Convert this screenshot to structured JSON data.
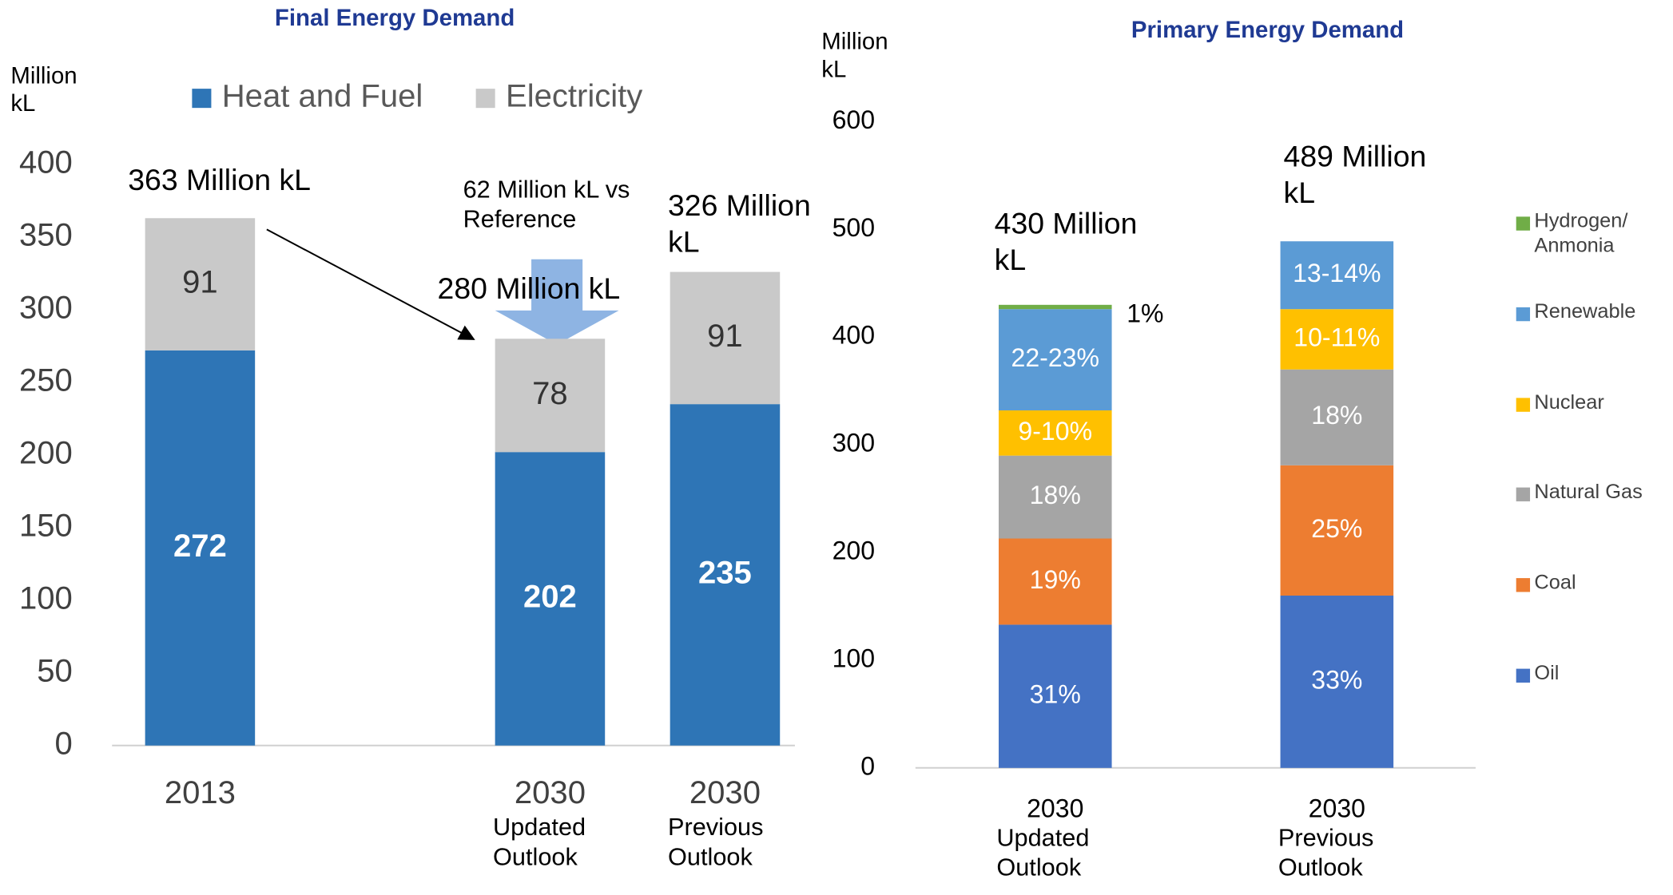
{
  "chart_data": [
    {
      "type": "bar",
      "stacked": true,
      "title": "Final Energy Demand",
      "y_label": "Million kL",
      "categories": [
        "2013",
        "2030",
        "2030"
      ],
      "category_notes": [
        null,
        "Updated Outlook",
        "Previous Outlook"
      ],
      "series": [
        {
          "name": "Heat and Fuel",
          "color": "#2e75b6",
          "values": [
            272,
            202,
            235
          ]
        },
        {
          "name": "Electricity",
          "color": "#c9c9c9",
          "values": [
            91,
            78,
            91
          ]
        }
      ],
      "total_labels": [
        "363 Million kL",
        "280 Million kL",
        "326 Million kL"
      ],
      "annotation": "62 Million kL vs Reference",
      "ylim": [
        0,
        400
      ],
      "yticks": [
        0,
        50,
        100,
        150,
        200,
        250,
        300,
        350,
        400
      ],
      "legend": "top"
    },
    {
      "type": "bar",
      "stacked": true,
      "title": "Primary Energy Demand",
      "y_label": "Million kL",
      "categories": [
        "2030",
        "2030"
      ],
      "category_notes": [
        "Updated Outlook",
        "Previous Outlook"
      ],
      "series": [
        {
          "name": "Oil",
          "color": "#4472c4",
          "values": [
            133,
            160
          ],
          "segment_labels": [
            "31%",
            "33%"
          ]
        },
        {
          "name": "Coal",
          "color": "#ed7d31",
          "values": [
            80,
            121
          ],
          "segment_labels": [
            "19%",
            "25%"
          ]
        },
        {
          "name": "Natural Gas",
          "color": "#a5a5a5",
          "values": [
            77,
            89
          ],
          "segment_labels": [
            "18%",
            "18%"
          ]
        },
        {
          "name": "Nuclear",
          "color": "#ffc000",
          "values": [
            42,
            56
          ],
          "segment_labels": [
            "9-10%",
            "10-11%"
          ]
        },
        {
          "name": "Renewable",
          "color": "#5b9bd5",
          "values": [
            94,
            63
          ],
          "segment_labels": [
            "22-23%",
            "13-14%"
          ]
        },
        {
          "name": "Hydrogen/ Anmonia",
          "color": "#70ad47",
          "values": [
            4,
            0
          ],
          "segment_labels": [
            "1%",
            null
          ]
        }
      ],
      "total_labels": [
        "430 Million kL",
        "489 Million kL"
      ],
      "ylim": [
        0,
        600
      ],
      "yticks": [
        0,
        100,
        200,
        300,
        400,
        500,
        600
      ],
      "legend": "right"
    }
  ]
}
